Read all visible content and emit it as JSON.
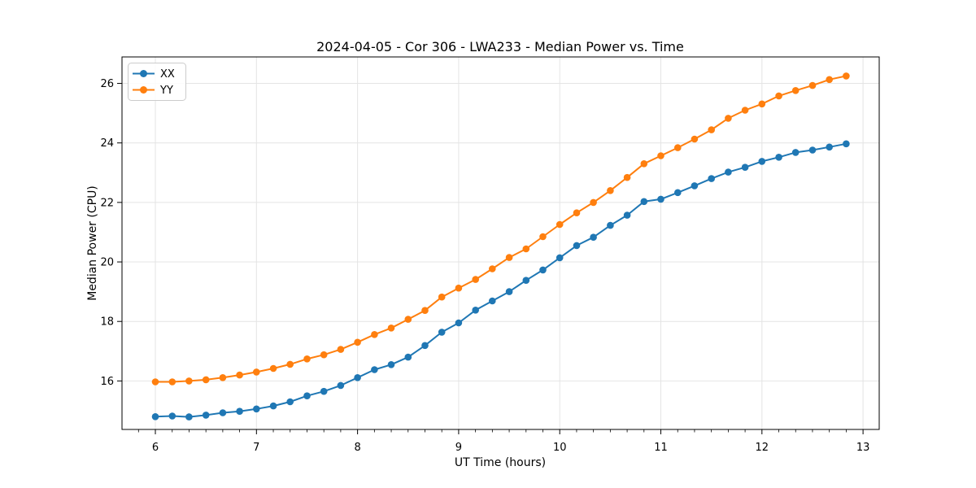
{
  "chart_data": {
    "type": "line",
    "title": "2024-04-05 - Cor 306 - LWA233 - Median Power vs. Time",
    "xlabel": "UT Time (hours)",
    "ylabel": "Median Power (CPU)",
    "xlim": [
      5.67,
      13.16
    ],
    "ylim": [
      14.37,
      26.89
    ],
    "xticks": [
      6,
      7,
      8,
      9,
      10,
      11,
      12,
      13
    ],
    "yticks": [
      16,
      18,
      20,
      22,
      24,
      26
    ],
    "x_minor_interval": 0.1666667,
    "grid": true,
    "grid_color": "#e4e4e4",
    "legend_position": "upper-left",
    "x": [
      6.0,
      6.167,
      6.333,
      6.5,
      6.667,
      6.833,
      7.0,
      7.167,
      7.333,
      7.5,
      7.667,
      7.833,
      8.0,
      8.167,
      8.333,
      8.5,
      8.667,
      8.833,
      9.0,
      9.167,
      9.333,
      9.5,
      9.667,
      9.833,
      10.0,
      10.167,
      10.333,
      10.5,
      10.667,
      10.833,
      11.0,
      11.167,
      11.333,
      11.5,
      11.667,
      11.833,
      12.0,
      12.167,
      12.333,
      12.5,
      12.667,
      12.833
    ],
    "series": [
      {
        "name": "XX",
        "color": "#1f77b4",
        "values": [
          14.8,
          14.82,
          14.79,
          14.85,
          14.93,
          14.98,
          15.06,
          15.16,
          15.3,
          15.5,
          15.65,
          15.85,
          16.11,
          16.38,
          16.55,
          16.8,
          17.19,
          17.64,
          17.95,
          18.38,
          18.69,
          19.0,
          19.38,
          19.73,
          20.14,
          20.55,
          20.83,
          21.23,
          21.57,
          22.03,
          22.11,
          22.33,
          22.56,
          22.8,
          23.02,
          23.18,
          23.38,
          23.52,
          23.68,
          23.76,
          23.86,
          23.97
        ]
      },
      {
        "name": "YY",
        "color": "#ff7f0e",
        "values": [
          15.97,
          15.97,
          16.0,
          16.04,
          16.11,
          16.2,
          16.3,
          16.42,
          16.56,
          16.74,
          16.88,
          17.06,
          17.3,
          17.56,
          17.78,
          18.07,
          18.37,
          18.82,
          19.12,
          19.41,
          19.77,
          20.15,
          20.44,
          20.85,
          21.26,
          21.65,
          22.0,
          22.4,
          22.84,
          23.3,
          23.57,
          23.84,
          24.13,
          24.44,
          24.83,
          25.1,
          25.31,
          25.58,
          25.76,
          25.93,
          26.13,
          26.25
        ]
      }
    ]
  }
}
